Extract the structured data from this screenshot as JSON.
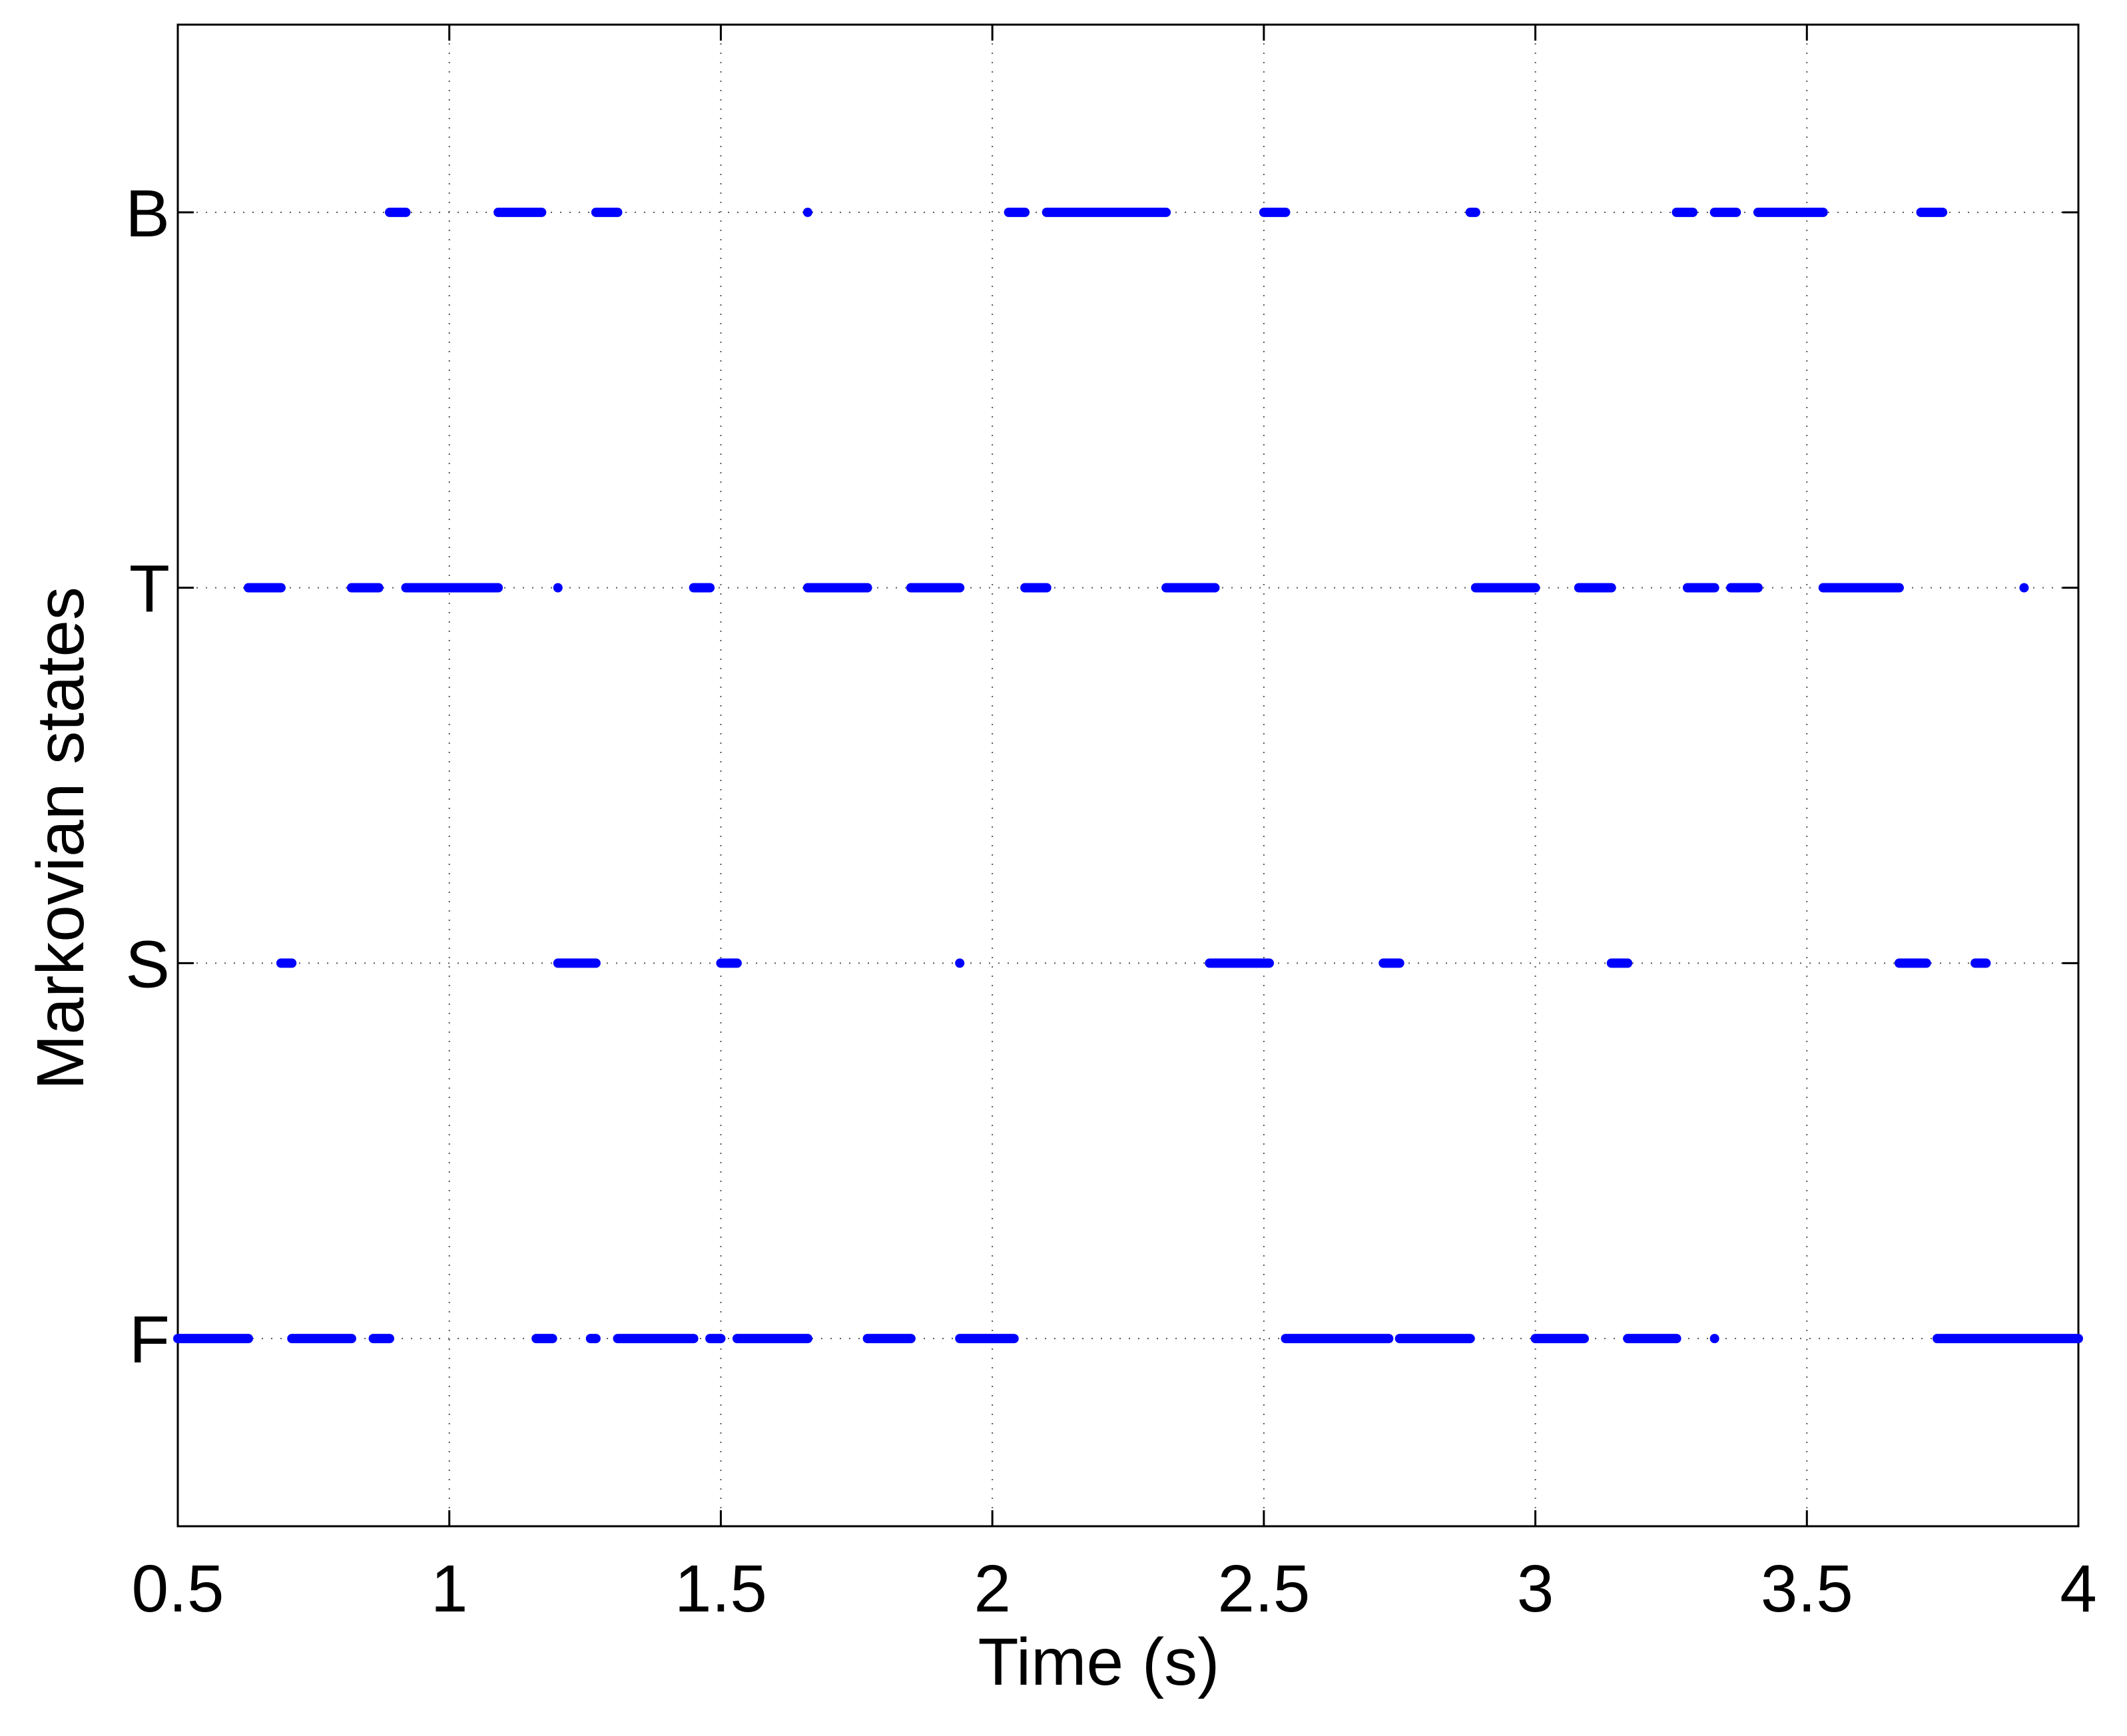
{
  "chart_data": {
    "type": "state-segments",
    "xlabel": "Time (s)",
    "ylabel": "Markovian states",
    "xlim": [
      0.5,
      4
    ],
    "xticks": [
      0.5,
      1,
      1.5,
      2,
      2.5,
      3,
      3.5,
      4
    ],
    "ylim": [
      0.5,
      4.5
    ],
    "yticks": [
      {
        "value": 1,
        "label": "F"
      },
      {
        "value": 2,
        "label": "S"
      },
      {
        "value": 3,
        "label": "T"
      },
      {
        "value": 4,
        "label": "B"
      }
    ],
    "grid": true,
    "color": "#0000ff",
    "series": [
      {
        "state": 4,
        "segments": [
          [
            0.89,
            0.92
          ],
          [
            1.09,
            1.17
          ],
          [
            1.27,
            1.31
          ],
          [
            1.66,
            1.66
          ],
          [
            2.03,
            2.06
          ],
          [
            2.1,
            2.32
          ],
          [
            2.5,
            2.54
          ],
          [
            2.88,
            2.89
          ],
          [
            3.26,
            3.29
          ],
          [
            3.33,
            3.37
          ],
          [
            3.41,
            3.53
          ],
          [
            3.71,
            3.75
          ]
        ]
      },
      {
        "state": 3,
        "segments": [
          [
            0.63,
            0.69
          ],
          [
            0.82,
            0.87
          ],
          [
            0.92,
            1.09
          ],
          [
            1.2,
            1.2
          ],
          [
            1.45,
            1.48
          ],
          [
            1.66,
            1.77
          ],
          [
            1.85,
            1.94
          ],
          [
            2.06,
            2.1
          ],
          [
            2.32,
            2.41
          ],
          [
            2.89,
            3.0
          ],
          [
            3.08,
            3.14
          ],
          [
            3.28,
            3.33
          ],
          [
            3.36,
            3.41
          ],
          [
            3.53,
            3.67
          ],
          [
            3.9,
            3.9
          ]
        ]
      },
      {
        "state": 2,
        "segments": [
          [
            0.69,
            0.71
          ],
          [
            1.2,
            1.27
          ],
          [
            1.5,
            1.53
          ],
          [
            1.94,
            1.94
          ],
          [
            2.4,
            2.51
          ],
          [
            2.72,
            2.75
          ],
          [
            3.14,
            3.17
          ],
          [
            3.67,
            3.72
          ],
          [
            3.81,
            3.83
          ]
        ]
      },
      {
        "state": 1,
        "segments": [
          [
            0.5,
            0.63
          ],
          [
            0.71,
            0.82
          ],
          [
            0.86,
            0.89
          ],
          [
            1.16,
            1.19
          ],
          [
            1.26,
            1.27
          ],
          [
            1.31,
            1.45
          ],
          [
            1.48,
            1.5
          ],
          [
            1.53,
            1.66
          ],
          [
            1.77,
            1.85
          ],
          [
            1.94,
            2.04
          ],
          [
            2.54,
            2.73
          ],
          [
            2.75,
            2.88
          ],
          [
            3.0,
            3.09
          ],
          [
            3.17,
            3.26
          ],
          [
            3.33,
            3.33
          ],
          [
            3.74,
            4.0
          ]
        ]
      }
    ]
  }
}
